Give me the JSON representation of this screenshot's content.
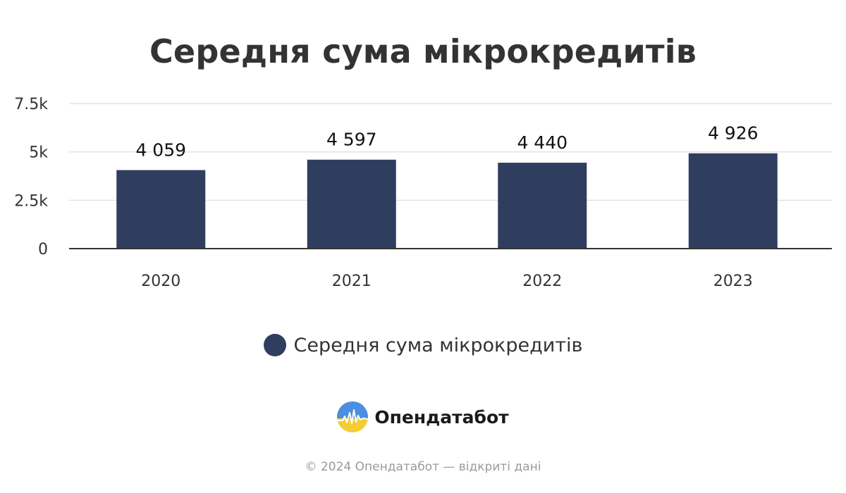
{
  "title": "Середня сума мікрокредитів",
  "chart_data": {
    "type": "bar",
    "title": "Середня сума мікрокредитів",
    "xlabel": "",
    "ylabel": "",
    "categories": [
      "2020",
      "2021",
      "2022",
      "2023"
    ],
    "series": [
      {
        "name": "Середня сума мікрокредитів",
        "values": [
          4059,
          4597,
          4440,
          4926
        ],
        "labels": [
          "4 059",
          "4 597",
          "4 440",
          "4 926"
        ],
        "color": "#2f3e5e"
      }
    ],
    "ylim": [
      0,
      7500
    ],
    "yticks": [
      0,
      2500,
      5000,
      7500
    ],
    "ytick_labels": [
      "0",
      "2.5k",
      "5k",
      "7.5k"
    ],
    "grid": true,
    "legend_position": "bottom-center"
  },
  "legend": {
    "label": "Середня сума мікрокредитів",
    "color": "#2f3e5e"
  },
  "logo": {
    "text": "Опендатабот",
    "icon": "opendatabot-logo-icon"
  },
  "footer": {
    "text": "© 2024 Опендатабот — відкриті дані"
  }
}
